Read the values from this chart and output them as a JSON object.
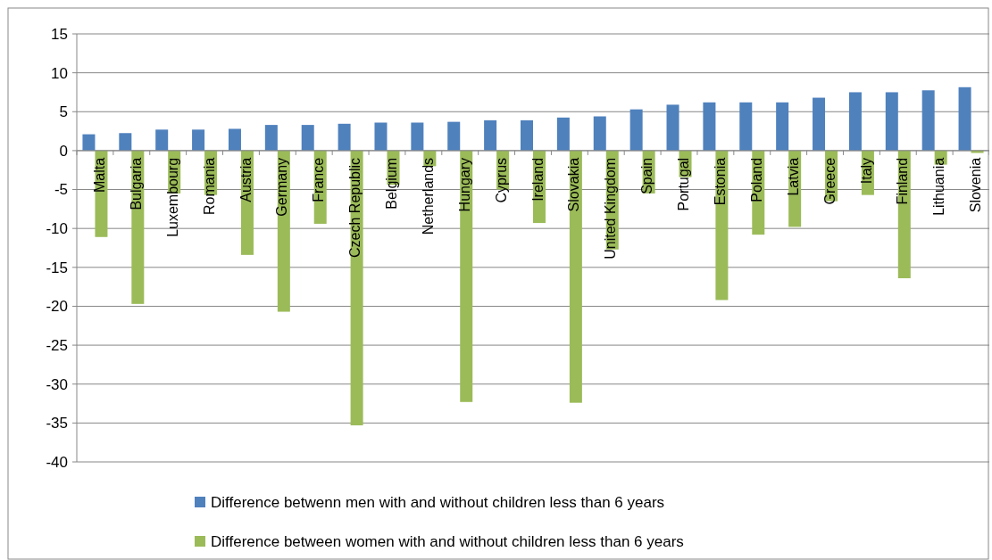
{
  "chart_data": {
    "type": "bar",
    "categories": [
      "Malta",
      "Bulgaria",
      "Luxembourg",
      "Romania",
      "Austria",
      "Germany",
      "France",
      "Czech Republic",
      "Belgium",
      "Netherlands",
      "Hungary",
      "Cyprus",
      "Ireland",
      "Slovakia",
      "United Kingdom",
      "Spain",
      "Portugal",
      "Estonia",
      "Poland",
      "Latvia",
      "Greece",
      "Italy",
      "Finland",
      "Lithuania",
      "Slovenia"
    ],
    "series": [
      {
        "name": "Difference betwenn men with and without children less than 6 years",
        "color": "#4f81bd",
        "values": [
          2.1,
          2.25,
          2.7,
          2.7,
          2.8,
          3.3,
          3.3,
          3.45,
          3.6,
          3.6,
          3.7,
          3.9,
          3.9,
          4.25,
          4.4,
          5.3,
          5.9,
          6.2,
          6.2,
          6.2,
          6.8,
          7.5,
          7.5,
          7.75,
          8.15
        ]
      },
      {
        "name": "Difference between women with and without children less than 6 years",
        "color": "#9bbb59",
        "values": [
          -11.1,
          -19.7,
          -5.5,
          -5.7,
          -13.4,
          -20.7,
          -9.4,
          -35.3,
          -4.4,
          -2,
          -32.3,
          -5,
          -9.3,
          -32.4,
          -12.7,
          -5.5,
          -3.4,
          -19.2,
          -10.8,
          -9.8,
          -6.5,
          -5.7,
          -16.4,
          -1.8,
          -0.3
        ]
      }
    ],
    "ylim": [
      -40,
      15
    ],
    "yticks": [
      -40,
      -35,
      -30,
      -25,
      -20,
      -15,
      -10,
      -5,
      0,
      5,
      10,
      15
    ],
    "grid": "y",
    "legend": "bottom"
  }
}
